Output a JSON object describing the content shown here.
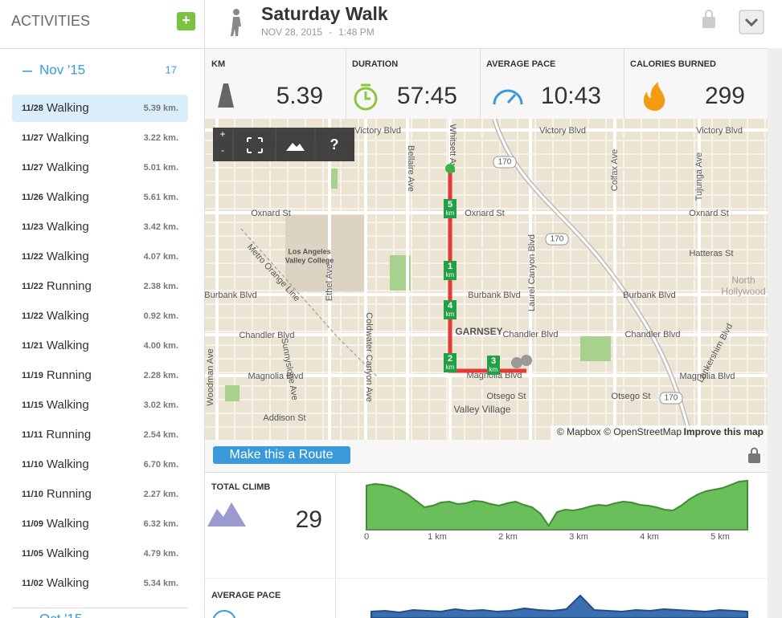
{
  "sidebar": {
    "title": "ACTIVITIES",
    "add_button": "+",
    "months": [
      {
        "label": "Nov '15",
        "count": "17",
        "activities": [
          {
            "date": "11/28",
            "type": "Walking",
            "distance": "5.39 km."
          },
          {
            "date": "11/27",
            "type": "Walking",
            "distance": "3.22 km."
          },
          {
            "date": "11/27",
            "type": "Walking",
            "distance": "5.01 km."
          },
          {
            "date": "11/26",
            "type": "Walking",
            "distance": "5.61 km."
          },
          {
            "date": "11/23",
            "type": "Walking",
            "distance": "3.42 km."
          },
          {
            "date": "11/22",
            "type": "Walking",
            "distance": "4.07 km."
          },
          {
            "date": "11/22",
            "type": "Running",
            "distance": "2.38 km."
          },
          {
            "date": "11/22",
            "type": "Walking",
            "distance": "0.92 km."
          },
          {
            "date": "11/21",
            "type": "Walking",
            "distance": "4.00 km."
          },
          {
            "date": "11/19",
            "type": "Running",
            "distance": "2.28 km."
          },
          {
            "date": "11/15",
            "type": "Walking",
            "distance": "3.02 km."
          },
          {
            "date": "11/11",
            "type": "Running",
            "distance": "2.54 km."
          },
          {
            "date": "11/10",
            "type": "Walking",
            "distance": "6.70 km."
          },
          {
            "date": "11/10",
            "type": "Running",
            "distance": "2.27 km."
          },
          {
            "date": "11/09",
            "type": "Walking",
            "distance": "6.32 km."
          },
          {
            "date": "11/05",
            "type": "Walking",
            "distance": "4.79 km."
          },
          {
            "date": "11/02",
            "type": "Walking",
            "distance": "5.34 km."
          }
        ]
      },
      {
        "label": "Oct '15"
      }
    ]
  },
  "header": {
    "title": "Saturday Walk",
    "date": "NOV 28, 2015",
    "separator": "-",
    "time": "1:48 PM"
  },
  "stats": [
    {
      "label": "KM",
      "value": "5.39"
    },
    {
      "label": "DURATION",
      "value": "57:45"
    },
    {
      "label": "AVERAGE PACE",
      "value": "10:43"
    },
    {
      "label": "CALORIES BURNED",
      "value": "299"
    }
  ],
  "map": {
    "controls": [
      "+",
      "-",
      "?"
    ],
    "labels": [
      "Victory Blvd",
      "Victory Blvd",
      "Victory Blvd",
      "Oxnard St",
      "Oxnard St",
      "Oxnard St",
      "Burbank Blvd",
      "Burbank Blvd",
      "Burbank Blvd",
      "Chandler Blvd",
      "Chandler Blvd",
      "Chandler Blvd",
      "Magnolia Blvd",
      "Magnolia Blvd",
      "Hatteras St",
      "Addison St",
      "Otsego St",
      "Otsego St",
      "GARNSEY",
      "Valley Village",
      "North",
      "Hollywood",
      "Los Angeles",
      "Valley College",
      "Whitsett Ave",
      "Bellaire Ave",
      "Coldwater Canyon Ave",
      "Laurel Canyon Blvd",
      "Colfax Ave",
      "Tujunga Ave",
      "Lankershim Blvd",
      "Ethel Ave",
      "Woodman Ave",
      "Sunnyslope Ave",
      "Metro Orange Line",
      "Magnolia Blvd"
    ],
    "shields": [
      "170",
      "170",
      "170"
    ],
    "km_markers": [
      "5",
      "1",
      "4",
      "2",
      "3"
    ],
    "km_unit": "km",
    "attribution": "© Mapbox © OpenStreetMap",
    "improve_link": "Improve this map"
  },
  "route_button": "Make this a Route",
  "climb": {
    "label": "TOTAL CLIMB",
    "value": "29",
    "x_labels": [
      "0",
      "1 km",
      "2 km",
      "3 km",
      "4 km",
      "5 km"
    ],
    "profile": [
      55,
      57,
      56,
      54,
      50,
      44,
      36,
      28,
      30,
      34,
      35,
      32,
      33,
      36,
      35,
      32,
      30,
      33,
      35,
      31,
      28,
      20,
      5,
      22,
      25,
      24,
      26,
      29,
      31,
      30,
      33,
      35,
      34,
      31,
      30,
      28,
      25,
      24,
      30,
      38,
      44,
      48,
      50,
      52,
      56,
      60,
      61
    ]
  },
  "pace": {
    "label": "AVERAGE PACE",
    "profile": [
      8,
      9,
      7,
      10,
      9,
      8,
      11,
      9,
      10,
      8,
      9,
      12,
      10,
      9,
      11,
      28,
      10,
      9,
      8,
      10,
      9,
      11,
      10,
      9,
      8,
      10,
      9,
      8
    ]
  }
}
